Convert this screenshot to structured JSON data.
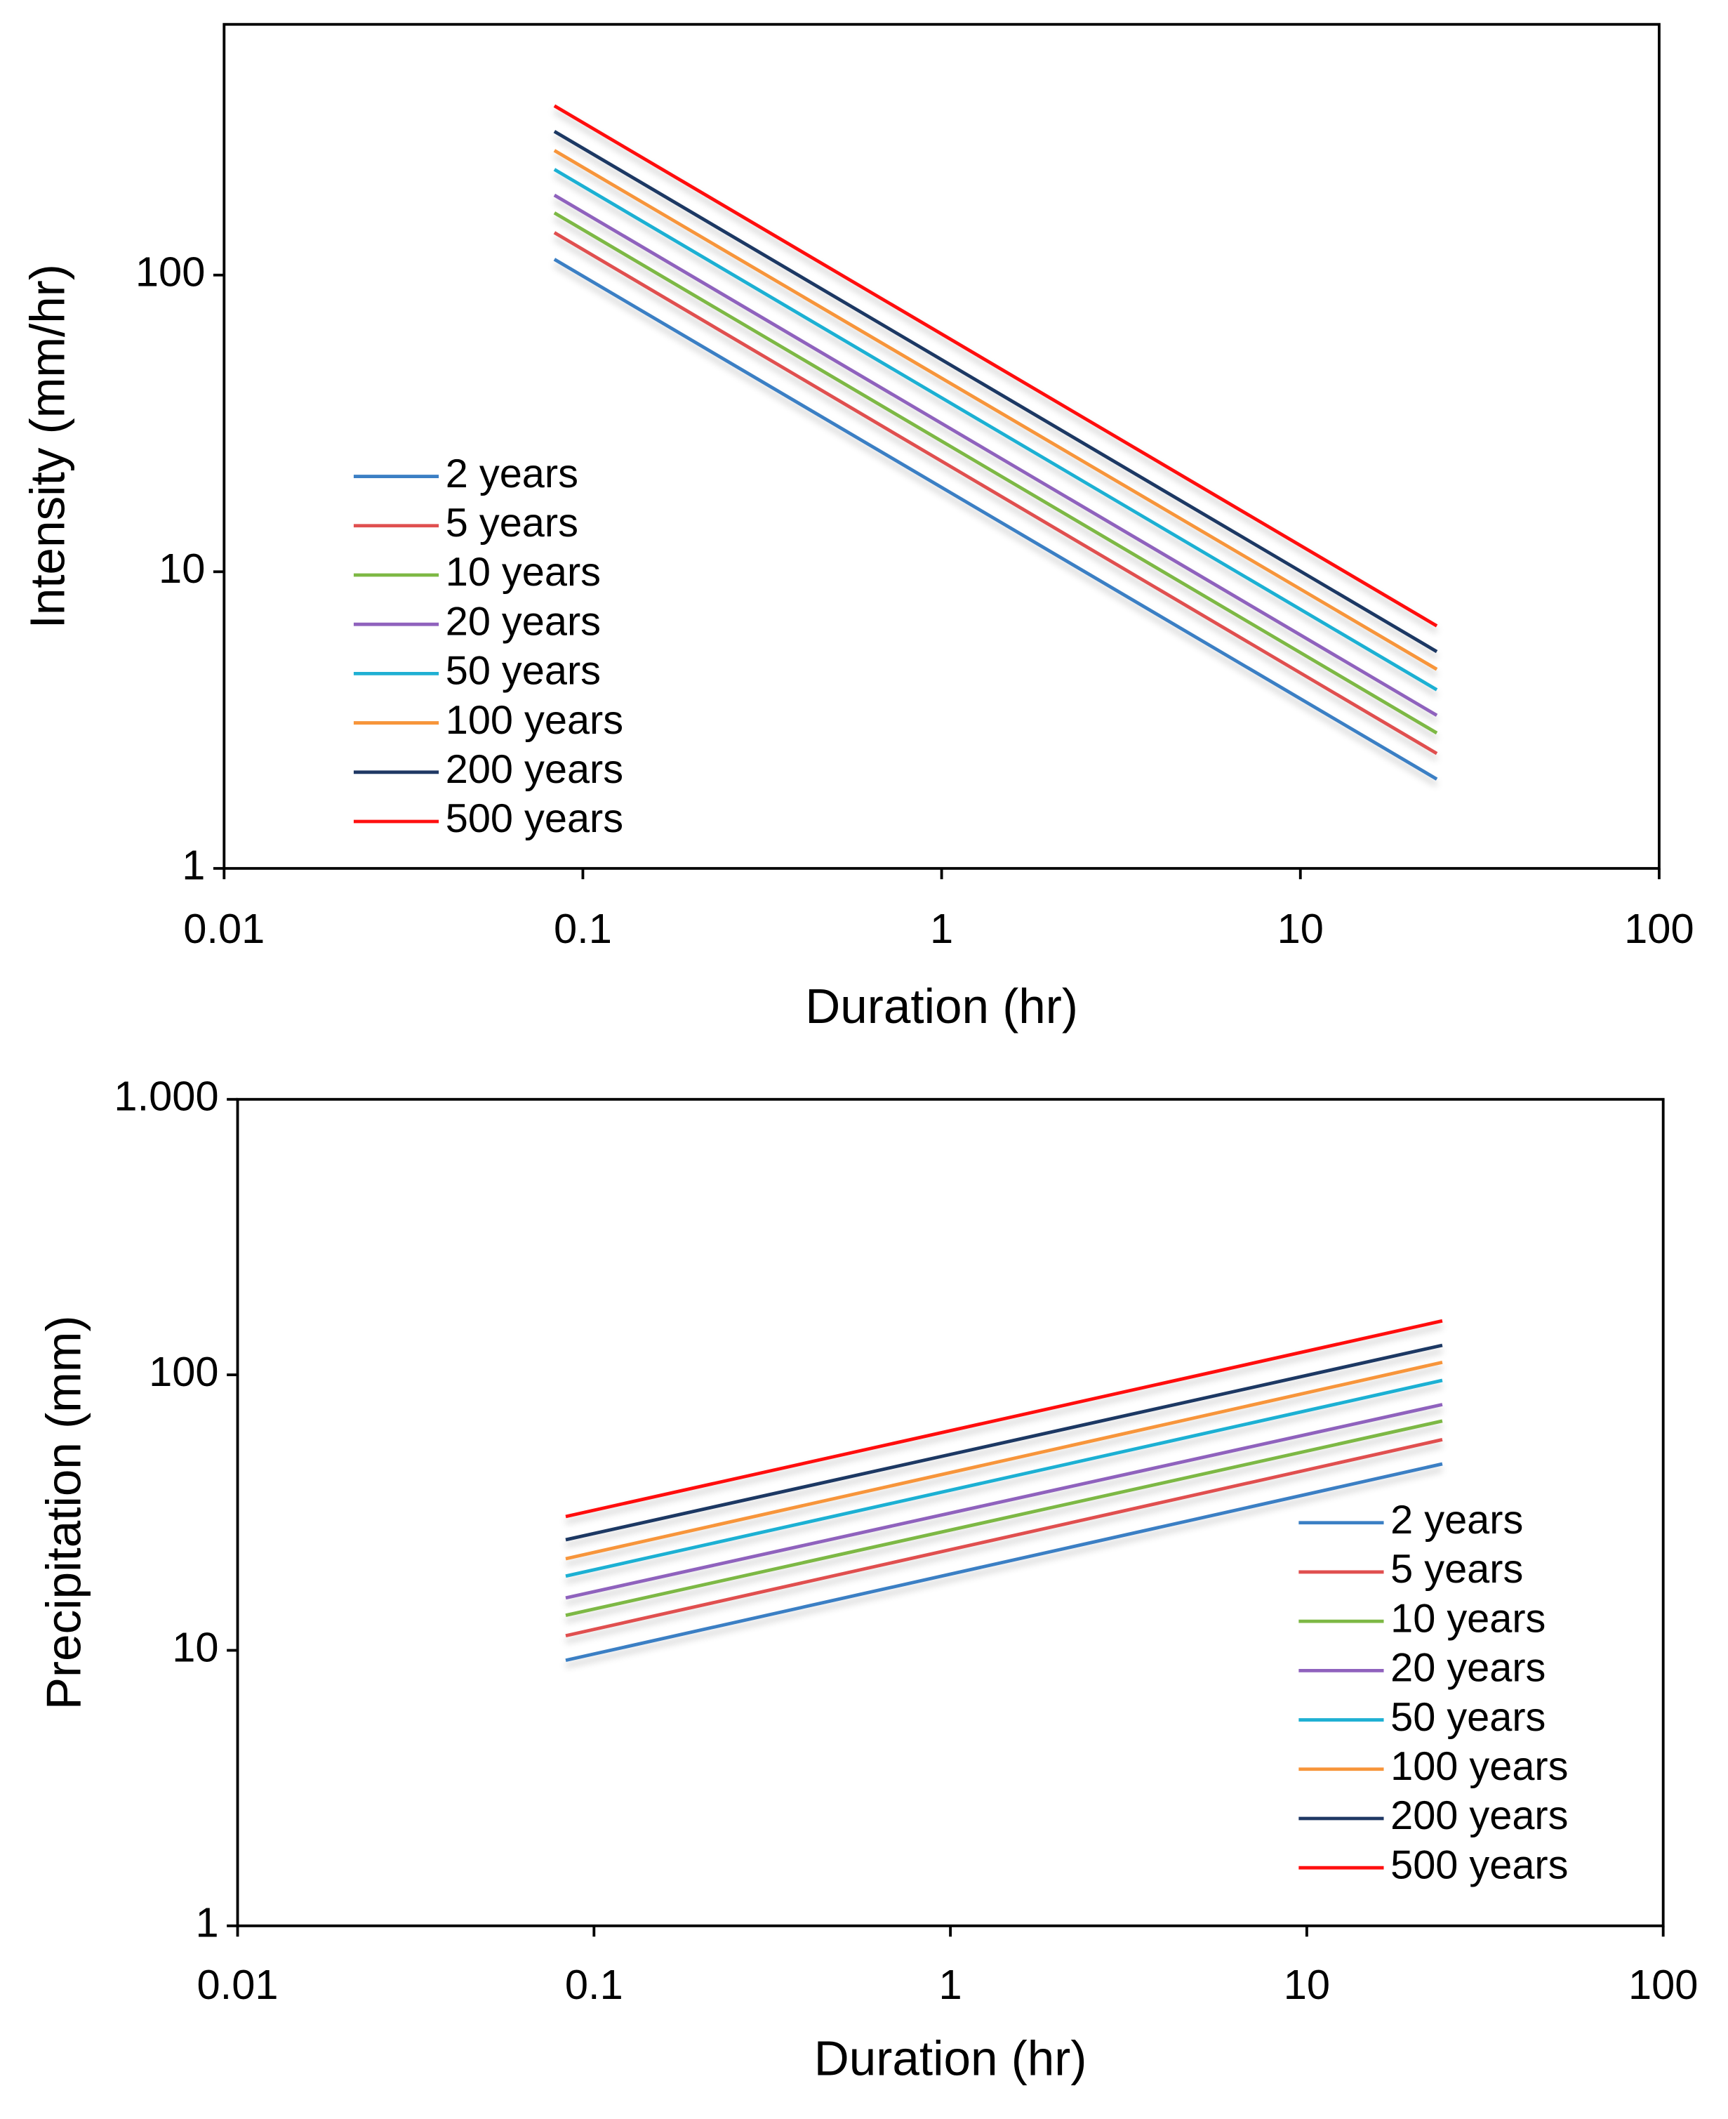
{
  "chart_data": [
    {
      "type": "line",
      "x_label": "Duration (hr)",
      "y_label": "Intensity (mm/hr)",
      "x": [
        0.0833,
        24
      ],
      "series": [
        {
          "name": "2 years",
          "color": "#3b7fc4",
          "values": [
            113,
            2.0
          ]
        },
        {
          "name": "5 years",
          "color": "#e04f4f",
          "values": [
            139,
            2.44
          ]
        },
        {
          "name": "10 years",
          "color": "#7db844",
          "values": [
            162,
            2.86
          ]
        },
        {
          "name": "20 years",
          "color": "#8f62bd",
          "values": [
            186,
            3.28
          ]
        },
        {
          "name": "50 years",
          "color": "#1fb0d3",
          "values": [
            227,
            4.0
          ]
        },
        {
          "name": "100 years",
          "color": "#f7953a",
          "values": [
            263,
            4.69
          ]
        },
        {
          "name": "200 years",
          "color": "#1f3864",
          "values": [
            305,
            5.38
          ]
        },
        {
          "name": "500 years",
          "color": "#ff1010",
          "values": [
            372,
            6.57
          ]
        }
      ],
      "xlim": [
        0.01,
        100
      ],
      "xticks": [
        0.01,
        0.1,
        1,
        10,
        100
      ],
      "log_x": true,
      "ylim": [
        1,
        700
      ],
      "yticks": [
        1,
        10,
        100
      ],
      "log_y": true,
      "legend": "center left"
    },
    {
      "type": "line",
      "x_label": "Duration (hr)",
      "y_label": "Precipitation (mm)",
      "x": [
        0.0833,
        24
      ],
      "series": [
        {
          "name": "2 years",
          "color": "#3b7fc4",
          "values": [
            9.2,
            47.5
          ]
        },
        {
          "name": "5 years",
          "color": "#e04f4f",
          "values": [
            11.3,
            58.2
          ]
        },
        {
          "name": "10 years",
          "color": "#7db844",
          "values": [
            13.4,
            68
          ]
        },
        {
          "name": "20 years",
          "color": "#8f62bd",
          "values": [
            15.5,
            78
          ]
        },
        {
          "name": "50 years",
          "color": "#1fb0d3",
          "values": [
            18.6,
            95.5
          ]
        },
        {
          "name": "100 years",
          "color": "#f7953a",
          "values": [
            21.5,
            111
          ]
        },
        {
          "name": "200 years",
          "color": "#1f3864",
          "values": [
            25.2,
            128
          ]
        },
        {
          "name": "500 years",
          "color": "#ff1010",
          "values": [
            30.6,
            157
          ]
        }
      ],
      "xlim": [
        0.01,
        100
      ],
      "xticks": [
        0.01,
        0.1,
        1,
        10,
        100
      ],
      "log_x": true,
      "ylim": [
        1,
        1000
      ],
      "yticks": [
        1,
        10,
        100,
        {
          "value": 1000,
          "label": "1.000"
        }
      ],
      "log_y": true,
      "legend": "lower right"
    }
  ]
}
